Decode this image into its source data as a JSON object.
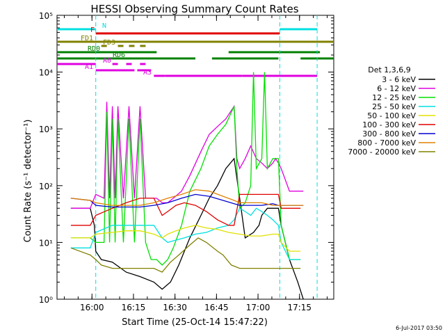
{
  "chart_data": {
    "type": "line",
    "title": "HESSI Observing Summary Count Rates",
    "xlabel": "Start Time (25-Oct-14 15:47:22)",
    "ylabel": "Count Rate (s⁻¹ detector⁻¹)",
    "ylog": true,
    "ylim": [
      1,
      100000
    ],
    "xlim_minutes": [
      0,
      100
    ],
    "x_ticks": [
      "16:00",
      "16:15",
      "16:30",
      "16:45",
      "17:00",
      "17:15"
    ],
    "y_ticks": [
      "10⁰",
      "10¹",
      "10²",
      "10³",
      "10⁴",
      "10⁵"
    ],
    "timestamp": "6-Jul-2017 03:50",
    "legend": {
      "title": "Det 1,3,6,9",
      "position": "right",
      "entries": [
        {
          "label": "3 - 6 keV",
          "color": "#000000"
        },
        {
          "label": "6 - 12 keV",
          "color": "#e000e0"
        },
        {
          "label": "12 - 25 keV",
          "color": "#00e000"
        },
        {
          "label": "25 - 50 keV",
          "color": "#00e0e0"
        },
        {
          "label": "50 - 100 keV",
          "color": "#e0e000"
        },
        {
          "label": "100 - 300 keV",
          "color": "#e00000"
        },
        {
          "label": "300 - 800 keV",
          "color": "#0000d0"
        },
        {
          "label": "800 - 7000 keV",
          "color": "#e08000"
        },
        {
          "label": "7000 - 20000 keV",
          "color": "#808000"
        }
      ]
    },
    "flags": [
      {
        "name": "N",
        "color": "#00e0e0",
        "segments": [
          [
            0,
            14
          ],
          [
            80.5,
            94
          ]
        ]
      },
      {
        "name": "F",
        "color": "#e00000",
        "segments": [
          [
            14,
            80.5
          ]
        ]
      },
      {
        "name": "FD1",
        "color": "#808000",
        "segments": [
          [
            0,
            100
          ]
        ]
      },
      {
        "name": "FD3",
        "color": "#808000",
        "segments": [
          [
            16,
            18
          ],
          [
            22,
            24
          ],
          [
            26,
            28
          ],
          [
            30,
            32
          ]
        ]
      },
      {
        "name": "RD0",
        "color": "#008000",
        "segments": [
          [
            0,
            36
          ],
          [
            62,
            95
          ]
        ]
      },
      {
        "name": "RD6",
        "color": "#008000",
        "segments": [
          [
            0,
            50
          ],
          [
            56,
            80
          ],
          [
            88,
            100
          ]
        ]
      },
      {
        "name": "A0",
        "color": "#e000e0",
        "segments": [
          [
            0,
            14
          ],
          [
            20,
            22
          ],
          [
            25,
            27
          ],
          [
            30,
            32
          ]
        ]
      },
      {
        "name": "A1",
        "color": "#e000e0",
        "segments": [
          [
            14,
            28
          ],
          [
            29,
            34
          ]
        ]
      },
      {
        "name": "A3",
        "color": "#e000e0",
        "segments": [
          [
            35,
            39
          ],
          [
            39,
            67
          ],
          [
            68,
            69
          ],
          [
            72,
            73
          ],
          [
            67,
            94
          ]
        ]
      }
    ],
    "vlines_minutes": [
      14,
      80.5,
      94
    ],
    "series": [
      {
        "name": "3 - 6 keV",
        "color": "#000000",
        "x": [
          5,
          12,
          13.5,
          14,
          16,
          20,
          25,
          30,
          35,
          38,
          41,
          44,
          48,
          52,
          55,
          58,
          61,
          64,
          66,
          68,
          71,
          73,
          74,
          76,
          78,
          80,
          81,
          84,
          87,
          89
        ],
        "y": [
          40,
          40,
          20,
          7,
          5,
          4.5,
          3,
          2.5,
          2,
          1.5,
          2,
          4,
          12,
          30,
          60,
          100,
          200,
          300,
          60,
          12,
          15,
          20,
          30,
          40,
          40,
          40,
          20,
          5,
          2,
          1
        ]
      },
      {
        "name": "6 - 12 keV",
        "color": "#e000e0",
        "x": [
          5,
          12,
          14,
          17,
          18,
          19,
          20,
          21,
          22,
          24,
          26,
          28,
          30,
          32,
          34,
          36,
          38,
          40,
          42,
          45,
          48,
          52,
          55,
          58,
          61,
          64,
          65,
          66,
          68,
          70,
          72,
          74,
          76,
          78,
          79,
          80,
          81,
          84,
          88,
          89
        ],
        "y": [
          40,
          40,
          70,
          60,
          3000,
          60,
          2500,
          60,
          2500,
          60,
          2500,
          60,
          2500,
          60,
          60,
          60,
          50,
          50,
          60,
          80,
          150,
          400,
          800,
          1100,
          1500,
          2500,
          300,
          200,
          300,
          500,
          300,
          250,
          200,
          250,
          300,
          250,
          200,
          80,
          80,
          80
        ]
      },
      {
        "name": "12 - 25 keV",
        "color": "#00e000",
        "x": [
          5,
          12,
          14,
          17,
          18,
          19,
          20,
          21,
          22,
          24,
          26,
          28,
          30,
          32,
          34,
          36,
          38,
          40,
          42,
          45,
          48,
          52,
          55,
          58,
          61,
          64,
          65,
          66,
          68,
          70,
          71,
          72,
          74,
          75,
          76,
          78,
          80,
          81,
          84,
          88
        ],
        "y": [
          12,
          12,
          10,
          10,
          2000,
          10,
          1500,
          10,
          1500,
          10,
          1500,
          10,
          1500,
          10,
          5,
          5,
          4,
          5,
          8,
          20,
          80,
          200,
          500,
          800,
          1200,
          2500,
          200,
          40,
          50,
          100,
          10000,
          200,
          300,
          10000,
          200,
          300,
          300,
          20,
          5,
          5
        ]
      },
      {
        "name": "25 - 50 keV",
        "color": "#00e0e0",
        "x": [
          5,
          12,
          14,
          20,
          25,
          30,
          35,
          38,
          40,
          43,
          46,
          50,
          54,
          58,
          62,
          64,
          66,
          68,
          70,
          72,
          74,
          76,
          78,
          80,
          81,
          84,
          88
        ],
        "y": [
          8,
          8,
          15,
          20,
          20,
          20,
          20,
          12,
          10,
          11,
          12,
          14,
          15,
          18,
          20,
          25,
          40,
          35,
          30,
          40,
          35,
          30,
          25,
          20,
          10,
          5,
          5
        ]
      },
      {
        "name": "50 - 100 keV",
        "color": "#e0e000",
        "x": [
          5,
          12,
          14,
          20,
          25,
          30,
          35,
          38,
          40,
          43,
          46,
          50,
          54,
          58,
          62,
          66,
          70,
          74,
          78,
          80,
          81,
          84,
          88
        ],
        "y": [
          12,
          12,
          14,
          15,
          16,
          16,
          14,
          12,
          14,
          16,
          18,
          20,
          18,
          17,
          15,
          14,
          13,
          13,
          14,
          14,
          10,
          7,
          7
        ]
      },
      {
        "name": "100 - 300 keV",
        "color": "#e00000",
        "x": [
          5,
          12,
          14,
          20,
          25,
          30,
          35,
          38,
          40,
          43,
          46,
          50,
          54,
          58,
          62,
          64,
          66,
          68,
          70,
          74,
          78,
          80,
          81,
          84,
          88
        ],
        "y": [
          20,
          20,
          30,
          40,
          50,
          60,
          60,
          30,
          35,
          45,
          50,
          45,
          35,
          25,
          20,
          20,
          70,
          70,
          70,
          70,
          70,
          70,
          40,
          40,
          40
        ]
      },
      {
        "name": "300 - 800 keV",
        "color": "#0000d0",
        "x": [
          5,
          12,
          14,
          20,
          25,
          30,
          35,
          40,
          45,
          50,
          55,
          60,
          64,
          66,
          70,
          74,
          78,
          80,
          82,
          86,
          89
        ],
        "y": [
          60,
          55,
          45,
          42,
          42,
          42,
          45,
          50,
          60,
          70,
          65,
          55,
          48,
          45,
          45,
          45,
          48,
          45,
          45,
          45,
          45
        ]
      },
      {
        "name": "800 - 7000 keV",
        "color": "#e08000",
        "x": [
          5,
          12,
          14,
          20,
          25,
          30,
          35,
          40,
          45,
          50,
          55,
          60,
          64,
          66,
          70,
          74,
          78,
          80,
          82,
          86,
          89
        ],
        "y": [
          60,
          55,
          50,
          45,
          45,
          45,
          50,
          60,
          70,
          85,
          80,
          65,
          55,
          50,
          50,
          50,
          45,
          45,
          45,
          45,
          45
        ]
      },
      {
        "name": "7000 - 20000 keV",
        "color": "#808000",
        "x": [
          5,
          12,
          14,
          16,
          20,
          25,
          30,
          35,
          38,
          41,
          44,
          48,
          51,
          54,
          58,
          60,
          63,
          66,
          70,
          75,
          80,
          81,
          84,
          88
        ],
        "y": [
          8,
          6,
          5,
          4,
          3.5,
          3.5,
          3.5,
          3.5,
          3,
          4.5,
          6,
          9,
          12,
          10,
          7,
          6,
          4,
          3.5,
          3.5,
          3.5,
          3.5,
          3.5,
          3.5,
          3.5
        ]
      }
    ]
  }
}
